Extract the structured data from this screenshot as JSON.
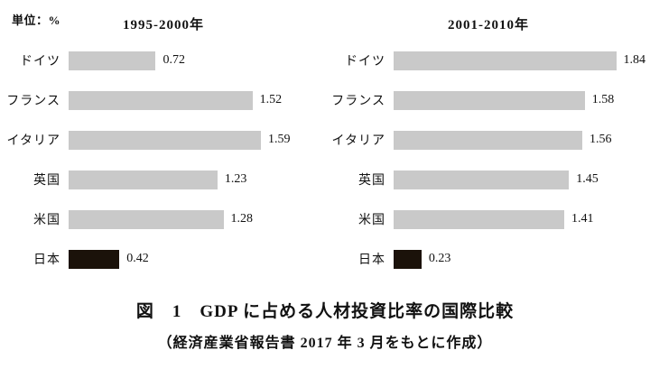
{
  "unit_label": "単位：%",
  "caption": {
    "title": "図　1　GDP に占める人材投資比率の国際比較",
    "source": "（経済産業省報告書 2017 年 3 月をもとに作成）"
  },
  "chart_data": [
    {
      "type": "bar",
      "orientation": "horizontal",
      "title": "1995-2000年",
      "categories": [
        "ドイツ",
        "フランス",
        "イタリア",
        "英国",
        "米国",
        "日本"
      ],
      "values": [
        0.72,
        1.52,
        1.59,
        1.23,
        1.28,
        0.42
      ],
      "xlim": [
        0,
        2.0
      ],
      "grid": false,
      "legend": "none",
      "bar_color": "#c9c9c9",
      "highlight_category": "日本",
      "highlight_color": "#1b120a",
      "value_labels": [
        "0.72",
        "1.52",
        "1.59",
        "1.23",
        "1.28",
        "0.42"
      ]
    },
    {
      "type": "bar",
      "orientation": "horizontal",
      "title": "2001-2010年",
      "categories": [
        "ドイツ",
        "フランス",
        "イタリア",
        "英国",
        "米国",
        "日本"
      ],
      "values": [
        1.84,
        1.58,
        1.56,
        1.45,
        1.41,
        0.23
      ],
      "xlim": [
        0,
        2.0
      ],
      "grid": false,
      "legend": "none",
      "bar_color": "#c9c9c9",
      "highlight_category": "日本",
      "highlight_color": "#1b120a",
      "value_labels": [
        "1.84",
        "1.58",
        "1.56",
        "1.45",
        "1.41",
        "0.23"
      ]
    }
  ]
}
